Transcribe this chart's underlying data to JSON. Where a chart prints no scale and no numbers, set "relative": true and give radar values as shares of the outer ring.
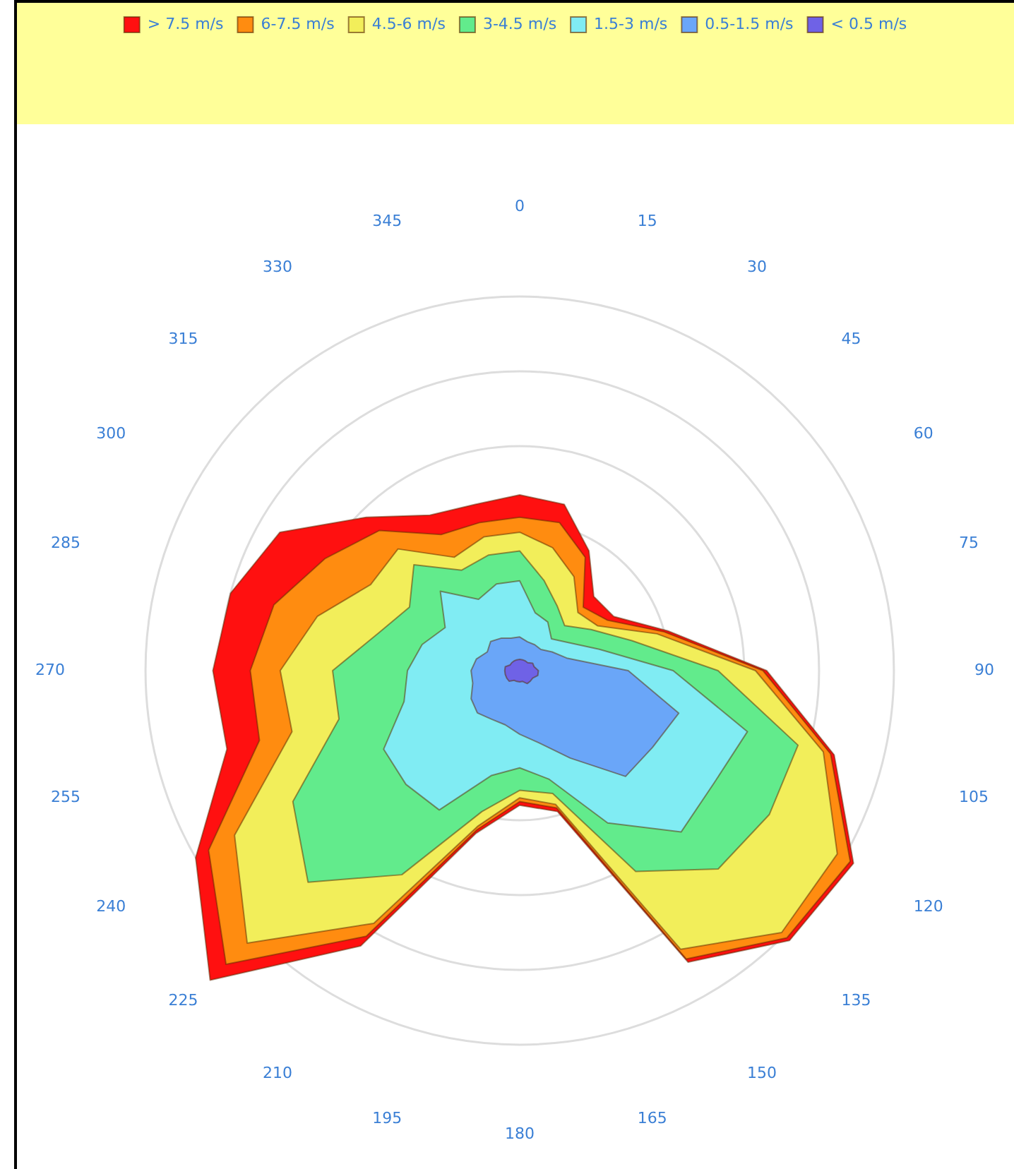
{
  "chart_data": {
    "type": "radar",
    "relative": true,
    "grid": true,
    "legend": "top",
    "categories": [
      "0",
      "15",
      "30",
      "45",
      "60",
      "75",
      "90",
      "105",
      "120",
      "135",
      "150",
      "165",
      "180",
      "195",
      "210",
      "225",
      "240",
      "255",
      "270",
      "285",
      "300",
      "315",
      "330",
      "345"
    ],
    "series": [
      {
        "name": "< 0.5 m/s",
        "color": "#6f62e6",
        "values": [
          0.03,
          0.03,
          0.03,
          0.03,
          0.04,
          0.04,
          0.05,
          0.05,
          0.04,
          0.04,
          0.04,
          0.03,
          0.03,
          0.03,
          0.03,
          0.04,
          0.04,
          0.04,
          0.04,
          0.04,
          0.03,
          0.03,
          0.03,
          0.03
        ]
      },
      {
        "name": "0.5-1.5 m/s",
        "color": "#6aa6f8",
        "values": [
          0.09,
          0.08,
          0.08,
          0.08,
          0.1,
          0.13,
          0.29,
          0.44,
          0.41,
          0.4,
          0.27,
          0.2,
          0.17,
          0.15,
          0.15,
          0.16,
          0.15,
          0.13,
          0.13,
          0.12,
          0.1,
          0.11,
          0.1,
          0.09
        ]
      },
      {
        "name": "1.5-3 m/s",
        "color": "#80ecf3",
        "values": [
          0.24,
          0.16,
          0.15,
          0.12,
          0.15,
          0.22,
          0.41,
          0.63,
          0.6,
          0.61,
          0.47,
          0.3,
          0.26,
          0.29,
          0.43,
          0.43,
          0.42,
          0.32,
          0.3,
          0.27,
          0.23,
          0.3,
          0.22,
          0.24
        ]
      },
      {
        "name": "3-4.5 m/s",
        "color": "#62eb8c",
        "values": [
          0.32,
          0.25,
          0.2,
          0.17,
          0.22,
          0.31,
          0.53,
          0.77,
          0.77,
          0.75,
          0.62,
          0.34,
          0.32,
          0.39,
          0.63,
          0.8,
          0.7,
          0.5,
          0.5,
          0.39,
          0.34,
          0.4,
          0.31,
          0.32
        ]
      },
      {
        "name": "4.5-6 m/s",
        "color": "#f2ee5a",
        "values": [
          0.37,
          0.34,
          0.29,
          0.22,
          0.24,
          0.38,
          0.63,
          0.84,
          0.98,
          0.99,
          0.86,
          0.37,
          0.34,
          0.43,
          0.78,
          1.03,
          0.88,
          0.63,
          0.64,
          0.56,
          0.46,
          0.46,
          0.35,
          0.37
        ]
      },
      {
        "name": "6-7.5 m/s",
        "color": "#ff8c10",
        "values": [
          0.41,
          0.41,
          0.35,
          0.24,
          0.27,
          0.4,
          0.65,
          0.86,
          1.02,
          1.01,
          0.89,
          0.38,
          0.35,
          0.44,
          0.82,
          1.11,
          0.96,
          0.72,
          0.72,
          0.68,
          0.6,
          0.53,
          0.42,
          0.41
        ]
      },
      {
        "name": "> 7.5 m/s",
        "color": "#ff1010",
        "values": [
          0.47,
          0.46,
          0.37,
          0.28,
          0.29,
          0.41,
          0.66,
          0.87,
          1.03,
          1.02,
          0.9,
          0.39,
          0.36,
          0.45,
          0.85,
          1.17,
          1.0,
          0.81,
          0.82,
          0.8,
          0.74,
          0.58,
          0.48,
          0.46
        ]
      }
    ]
  }
}
